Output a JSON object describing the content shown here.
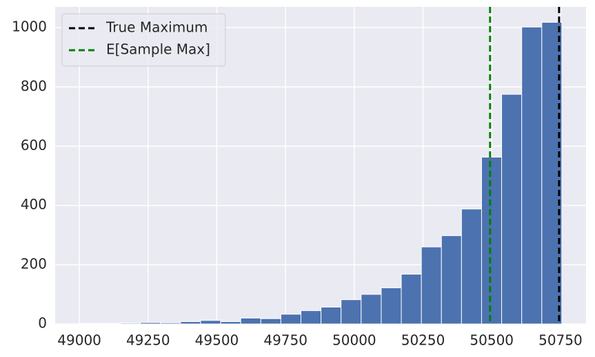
{
  "chart_data": {
    "type": "histogram",
    "bins": [
      49003,
      49076,
      49149,
      49222,
      49295,
      49368,
      49441,
      49514,
      49587,
      49660,
      49733,
      49806,
      49879,
      49952,
      50025,
      50098,
      50171,
      50244,
      50317,
      50390,
      50463,
      50536,
      50609,
      50682,
      50755
    ],
    "values": [
      2,
      2,
      3,
      5,
      4,
      8,
      12,
      8,
      20,
      18,
      33,
      45,
      57,
      82,
      100,
      122,
      168,
      260,
      298,
      388,
      563,
      775,
      1002,
      1018
    ],
    "color": "#4c72b0",
    "vlines": [
      {
        "name": "True Maximum",
        "value": 50745,
        "color": "#000000"
      },
      {
        "name": "E[Sample Max]",
        "value": 50494,
        "color": "#008000"
      }
    ],
    "xlim": [
      48912,
      50843
    ],
    "ylim": [
      0,
      1070
    ],
    "xticks": [
      49000,
      49250,
      49500,
      49750,
      50000,
      50250,
      50500,
      50750
    ],
    "yticks": [
      0,
      200,
      400,
      600,
      800,
      1000
    ],
    "grid": true,
    "legend": "upper left"
  }
}
